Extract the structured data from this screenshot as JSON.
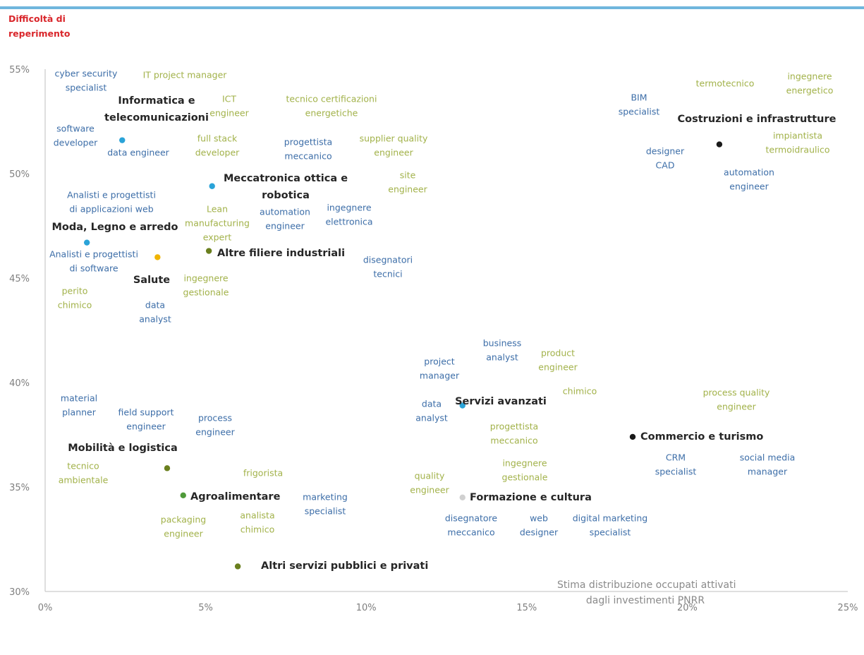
{
  "chart_data": {
    "type": "scatter",
    "ylabel_lines": [
      "Difficoltà di",
      "reperimento"
    ],
    "xlabel_lines": [
      "Stima distribuzione occupati attivati",
      "dagli investimenti PNRR"
    ],
    "xlim": [
      0,
      25
    ],
    "ylim": [
      30,
      55
    ],
    "x_ticks": [
      "0%",
      "5%",
      "10%",
      "15%",
      "20%",
      "25%"
    ],
    "y_ticks": [
      "30%",
      "35%",
      "40%",
      "45%",
      "50%",
      "55%"
    ],
    "colors": {
      "axis": "#bfbfbf",
      "tick": "#7f7f7f",
      "sector": "#262626",
      "blue": "#3d6ea8",
      "green": "#a2b24a",
      "ylabel": "#d9262b",
      "rule": "#6fb6dd"
    },
    "sectors": [
      {
        "name": "Informatica e telecomunicazioni",
        "lines": [
          "Informatica e",
          "telecomunicazioni"
        ],
        "x": 2.4,
        "y": 51.6,
        "color": "#2aa3d8"
      },
      {
        "name": "Meccatronica ottica e robotica",
        "lines": [
          "Meccatronica ottica e",
          "robotica"
        ],
        "x": 5.2,
        "y": 49.4,
        "color": "#2aa3d8"
      },
      {
        "name": "Moda, Legno e arredo",
        "lines": [
          "Moda, Legno e arredo"
        ],
        "x": 1.3,
        "y": 46.7,
        "color": "#2aa3d8"
      },
      {
        "name": "Salute",
        "lines": [
          "Salute"
        ],
        "x": 3.5,
        "y": 46.0,
        "color": "#f0b400"
      },
      {
        "name": "Altre filiere industriali",
        "lines": [
          "Altre filiere industriali"
        ],
        "x": 5.1,
        "y": 46.3,
        "color": "#6a7f1e"
      },
      {
        "name": "Costruzioni e infrastrutture",
        "lines": [
          "Costruzioni e infrastrutture"
        ],
        "x": 21.0,
        "y": 51.4,
        "color": "#1a1a1a"
      },
      {
        "name": "Servizi avanzati",
        "lines": [
          "Servizi avanzati"
        ],
        "x": 13.0,
        "y": 38.9,
        "color": "#2aa3d8"
      },
      {
        "name": "Commercio e turismo",
        "lines": [
          "Commercio e turismo"
        ],
        "x": 18.3,
        "y": 37.4,
        "color": "#1a1a1a"
      },
      {
        "name": "Mobilità e logistica",
        "lines": [
          "Mobilità e logistica"
        ],
        "x": 3.8,
        "y": 35.9,
        "color": "#6a7f1e"
      },
      {
        "name": "Agroalimentare",
        "lines": [
          "Agroalimentare"
        ],
        "x": 4.3,
        "y": 34.6,
        "color": "#4f9a3a"
      },
      {
        "name": "Formazione e cultura",
        "lines": [
          "Formazione e cultura"
        ],
        "x": 13.0,
        "y": 34.5,
        "color": "#d0d0d0"
      },
      {
        "name": "Altri servizi pubblici e privati",
        "lines": [
          "Altri servizi pubblici e privati"
        ],
        "x": 6.0,
        "y": 31.2,
        "color": "#6a7f1e"
      }
    ],
    "annotations": [
      {
        "lines": [
          "cyber security",
          "specialist"
        ],
        "color": "blue"
      },
      {
        "lines": [
          "IT project manager"
        ],
        "color": "green"
      },
      {
        "lines": [
          "ICT",
          "engineer"
        ],
        "color": "green"
      },
      {
        "lines": [
          "tecnico certificazioni",
          "energetiche"
        ],
        "color": "green"
      },
      {
        "lines": [
          "software",
          "developer"
        ],
        "color": "blue"
      },
      {
        "lines": [
          "data engineer"
        ],
        "color": "blue"
      },
      {
        "lines": [
          "full stack",
          "developer"
        ],
        "color": "green"
      },
      {
        "lines": [
          "progettista",
          "meccanico"
        ],
        "color": "blue"
      },
      {
        "lines": [
          "supplier quality",
          "engineer"
        ],
        "color": "green"
      },
      {
        "lines": [
          "site",
          "engineer"
        ],
        "color": "green"
      },
      {
        "lines": [
          "Analisti e progettisti",
          "di applicazioni web"
        ],
        "color": "blue"
      },
      {
        "lines": [
          "Lean",
          "manufacturing",
          "expert"
        ],
        "color": "green"
      },
      {
        "lines": [
          "automation",
          "engineer"
        ],
        "color": "blue"
      },
      {
        "lines": [
          "ingegnere",
          "elettronica"
        ],
        "color": "blue"
      },
      {
        "lines": [
          "Analisti e progettisti",
          "di software"
        ],
        "color": "blue"
      },
      {
        "lines": [
          "disegnatori",
          "tecnici"
        ],
        "color": "blue"
      },
      {
        "lines": [
          "perito",
          "chimico"
        ],
        "color": "green"
      },
      {
        "lines": [
          "ingegnere",
          "gestionale"
        ],
        "color": "green"
      },
      {
        "lines": [
          "data",
          "analyst"
        ],
        "color": "blue"
      },
      {
        "lines": [
          "termotecnico"
        ],
        "color": "green"
      },
      {
        "lines": [
          "ingegnere",
          "energetico"
        ],
        "color": "green"
      },
      {
        "lines": [
          "BIM",
          "specialist"
        ],
        "color": "blue"
      },
      {
        "lines": [
          "impiantista",
          "termoidraulico"
        ],
        "color": "green"
      },
      {
        "lines": [
          "designer",
          "CAD"
        ],
        "color": "blue"
      },
      {
        "lines": [
          "automation",
          "engineer"
        ],
        "color": "blue"
      },
      {
        "lines": [
          "business",
          "analyst"
        ],
        "color": "blue"
      },
      {
        "lines": [
          "product",
          "engineer"
        ],
        "color": "green"
      },
      {
        "lines": [
          "project",
          "manager"
        ],
        "color": "blue"
      },
      {
        "lines": [
          "chimico"
        ],
        "color": "green"
      },
      {
        "lines": [
          "process quality",
          "engineer"
        ],
        "color": "green"
      },
      {
        "lines": [
          "data",
          "analyst"
        ],
        "color": "blue"
      },
      {
        "lines": [
          "progettista",
          "meccanico"
        ],
        "color": "green"
      },
      {
        "lines": [
          "material",
          "planner"
        ],
        "color": "blue"
      },
      {
        "lines": [
          "field support",
          "engineer"
        ],
        "color": "blue"
      },
      {
        "lines": [
          "process",
          "engineer"
        ],
        "color": "blue"
      },
      {
        "lines": [
          "tecnico",
          "ambientale"
        ],
        "color": "green"
      },
      {
        "lines": [
          "frigorista"
        ],
        "color": "green"
      },
      {
        "lines": [
          "quality",
          "engineer"
        ],
        "color": "green"
      },
      {
        "lines": [
          "ingegnere",
          "gestionale"
        ],
        "color": "green"
      },
      {
        "lines": [
          "CRM",
          "specialist"
        ],
        "color": "blue"
      },
      {
        "lines": [
          "social media",
          "manager"
        ],
        "color": "blue"
      },
      {
        "lines": [
          "marketing",
          "specialist"
        ],
        "color": "blue"
      },
      {
        "lines": [
          "packaging",
          "engineer"
        ],
        "color": "green"
      },
      {
        "lines": [
          "analista",
          "chimico"
        ],
        "color": "green"
      },
      {
        "lines": [
          "disegnatore",
          "meccanico"
        ],
        "color": "blue"
      },
      {
        "lines": [
          "web",
          "designer"
        ],
        "color": "blue"
      },
      {
        "lines": [
          "digital marketing",
          "specialist"
        ],
        "color": "blue"
      }
    ]
  }
}
